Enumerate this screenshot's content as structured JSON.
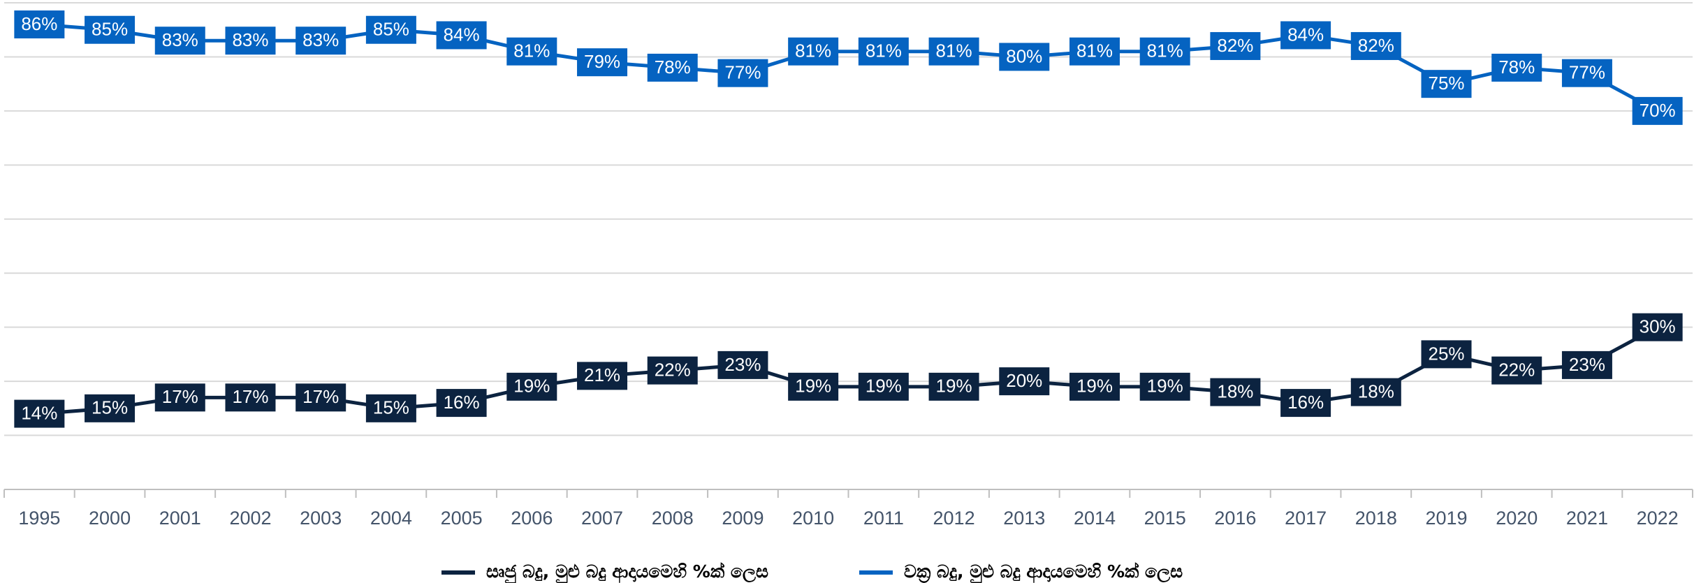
{
  "chart_data": {
    "type": "line",
    "categories": [
      "1995",
      "2000",
      "2001",
      "2002",
      "2003",
      "2004",
      "2005",
      "2006",
      "2007",
      "2008",
      "2009",
      "2010",
      "2011",
      "2012",
      "2013",
      "2014",
      "2015",
      "2016",
      "2017",
      "2018",
      "2019",
      "2020",
      "2021",
      "2022"
    ],
    "series": [
      {
        "name": "සෘජු බදු, මුළු බදු ආදායමෙහි %ක් ලෙස",
        "color": "#0c2340",
        "values": [
          14,
          15,
          17,
          17,
          17,
          15,
          16,
          19,
          21,
          22,
          23,
          19,
          19,
          19,
          20,
          19,
          19,
          18,
          16,
          18,
          25,
          22,
          23,
          30
        ],
        "value_labels": [
          "14%",
          "15%",
          "17%",
          "17%",
          "17%",
          "15%",
          "16%",
          "19%",
          "21%",
          "22%",
          "23%",
          "19%",
          "19%",
          "19%",
          "20%",
          "19%",
          "19%",
          "18%",
          "16%",
          "18%",
          "25%",
          "22%",
          "23%",
          "30%"
        ]
      },
      {
        "name": "වක්‍ර බදු, මුළු බදු ආදායමෙහි %ක් ලෙස",
        "color": "#0563c1",
        "values": [
          86,
          85,
          83,
          83,
          83,
          85,
          84,
          81,
          79,
          78,
          77,
          81,
          81,
          81,
          80,
          81,
          81,
          82,
          84,
          82,
          75,
          78,
          77,
          70
        ],
        "value_labels": [
          "86%",
          "85%",
          "83%",
          "83%",
          "83%",
          "85%",
          "84%",
          "81%",
          "79%",
          "78%",
          "77%",
          "81%",
          "81%",
          "81%",
          "80%",
          "81%",
          "81%",
          "82%",
          "84%",
          "82%",
          "75%",
          "78%",
          "77%",
          "70%"
        ]
      }
    ],
    "ylim": [
      0,
      90
    ],
    "yticks": [
      0,
      10,
      20,
      30,
      40,
      50,
      60,
      70,
      80,
      90
    ],
    "grid": true,
    "legend": "bottom"
  }
}
